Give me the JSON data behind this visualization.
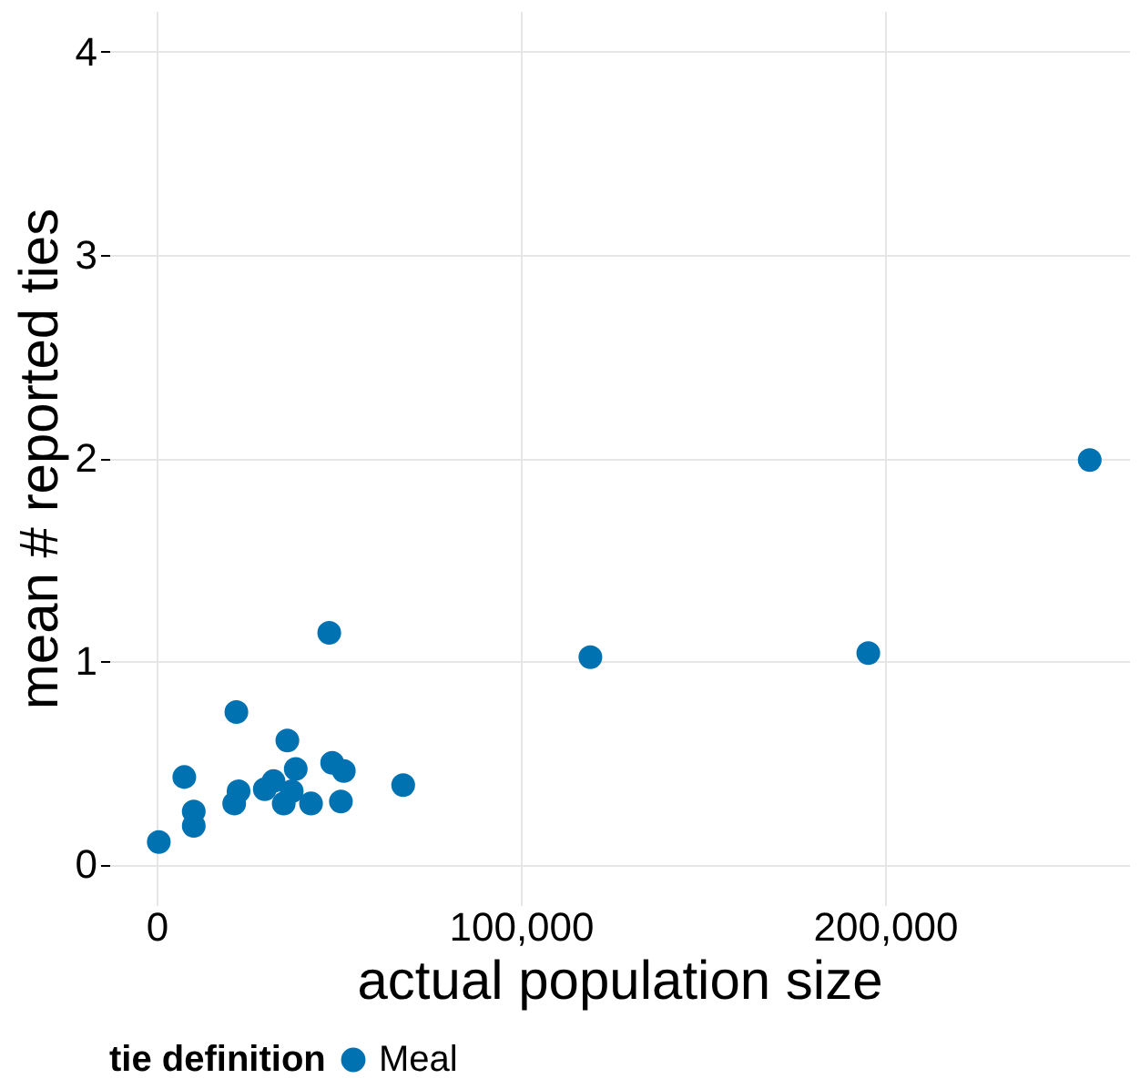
{
  "chart_data": {
    "type": "scatter",
    "xlabel": "actual population size",
    "ylabel": "mean # reported ties",
    "legend_title": "tie definition",
    "series": [
      {
        "name": "Meal",
        "color": "#0072b2",
        "x": [
          600,
          7600,
          10200,
          10200,
          21900,
          21300,
          22500,
          29700,
          32100,
          34900,
          35900,
          37100,
          38200,
          42400,
          47400,
          48200,
          50600,
          51400,
          67700,
          119100,
          195400,
          256200
        ],
        "values": [
          0.11,
          0.43,
          0.26,
          0.19,
          0.75,
          0.3,
          0.36,
          0.37,
          0.41,
          0.3,
          0.61,
          0.36,
          0.47,
          0.3,
          1.14,
          0.5,
          0.31,
          0.46,
          0.39,
          1.02,
          1.04,
          1.99
        ]
      }
    ],
    "xlim": [
      -13000,
      267000
    ],
    "xticks": [
      {
        "value": 0,
        "label": "0"
      },
      {
        "value": 100000,
        "label": "100,000"
      },
      {
        "value": 200000,
        "label": "200,000"
      }
    ],
    "ylim": [
      -0.2,
      4.2
    ],
    "yticks": [
      0,
      1,
      2,
      3,
      4
    ],
    "grid": true,
    "legend": "bottom",
    "marker": "circle"
  }
}
